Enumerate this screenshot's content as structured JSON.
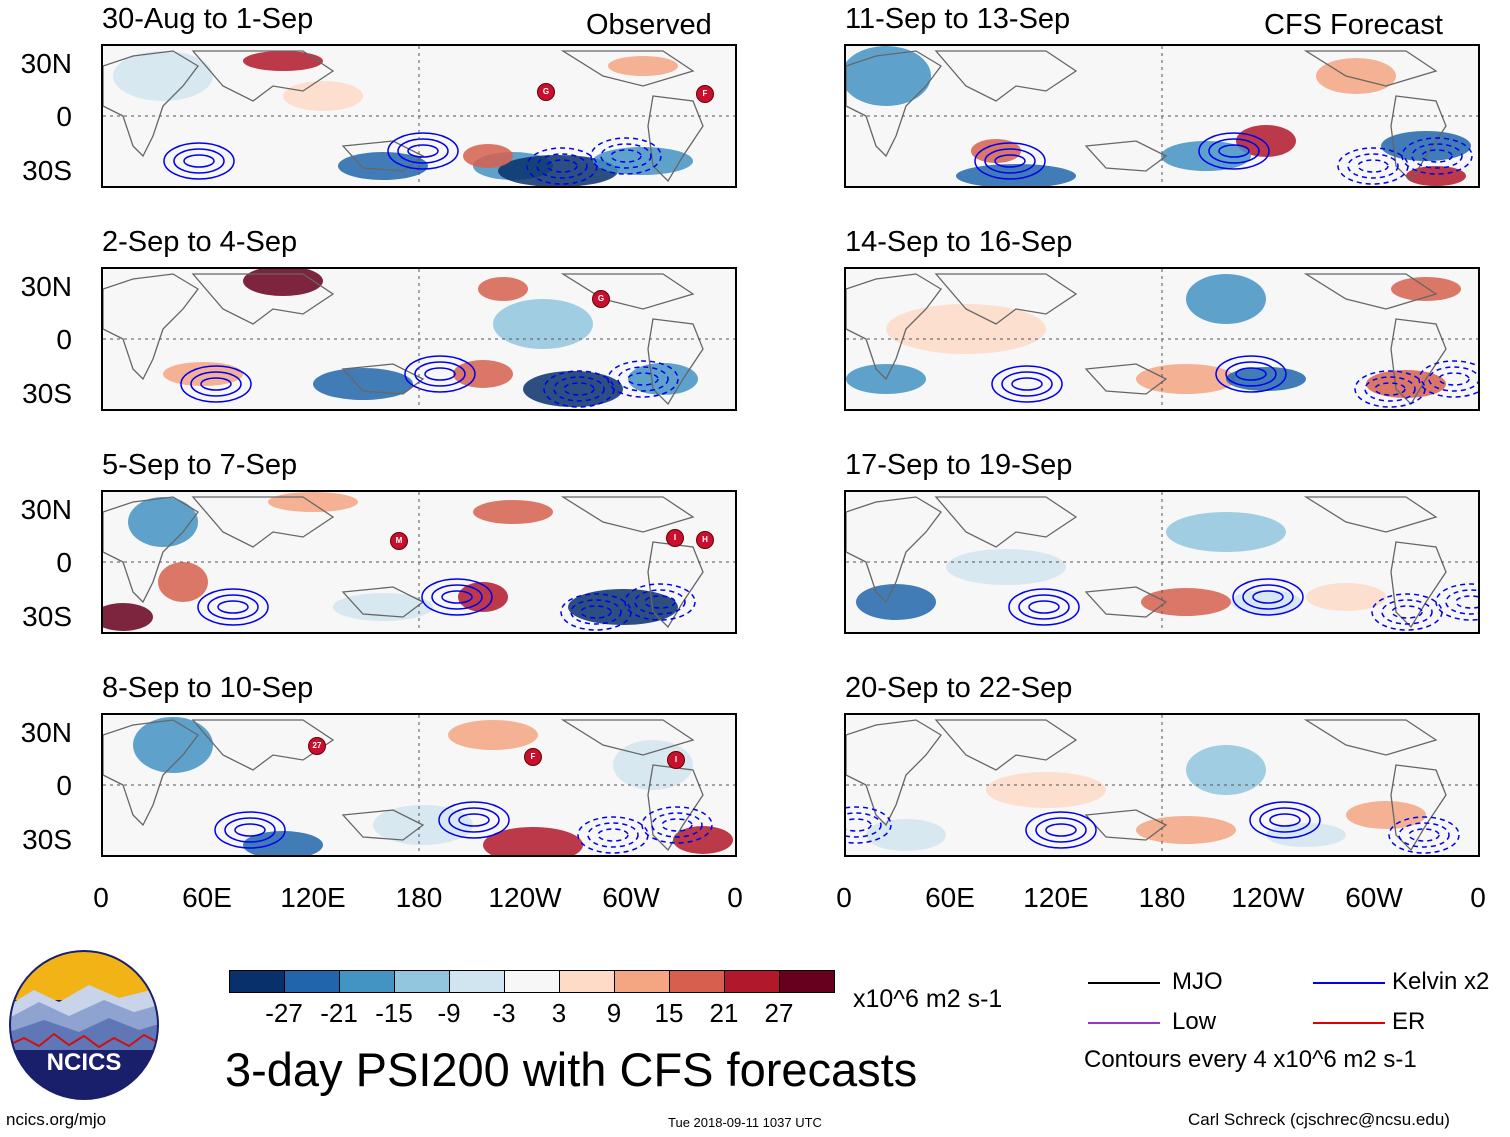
{
  "observed_label": "Observed",
  "forecast_label": "CFS Forecast",
  "panels_left": [
    {
      "title": "30-Aug to 1-Sep",
      "storms": [
        "G",
        "F"
      ]
    },
    {
      "title": "2-Sep to 4-Sep",
      "storms": [
        "G"
      ]
    },
    {
      "title": "5-Sep to 7-Sep",
      "storms": [
        "M",
        "I",
        "H"
      ]
    },
    {
      "title": "8-Sep to 10-Sep",
      "storms": [
        "27",
        "F",
        "I"
      ]
    }
  ],
  "panels_right": [
    {
      "title": "11-Sep to 13-Sep"
    },
    {
      "title": "14-Sep to 16-Sep"
    },
    {
      "title": "17-Sep to 19-Sep"
    },
    {
      "title": "20-Sep to 22-Sep"
    }
  ],
  "lat_labels": [
    "30N",
    "0",
    "30S"
  ],
  "lon_labels": [
    "0",
    "60E",
    "120E",
    "180",
    "120W",
    "60W",
    "0"
  ],
  "colorbar": {
    "colors": [
      "#08306b",
      "#2166ac",
      "#4393c3",
      "#92c5de",
      "#d1e5f0",
      "#f7f7f7",
      "#fddbc7",
      "#f4a582",
      "#d6604d",
      "#b2182b",
      "#67001f"
    ],
    "labels": [
      "-27",
      "-21",
      "-15",
      "-9",
      "-3",
      "3",
      "9",
      "15",
      "21",
      "27"
    ],
    "units": "x10^6 m2 s-1"
  },
  "legend": {
    "mjo": "MJO",
    "low": "Low",
    "kelvin": "Kelvin x2",
    "er": "ER",
    "mjo_color": "#000000",
    "low_color": "#9933cc",
    "kelvin_color": "#0000ee",
    "er_color": "#dd0000",
    "contour_note": "Contours every 4 x10^6 m2 s-1"
  },
  "logo_text": "NCICS",
  "main_title": "3-day PSI200 with CFS forecasts",
  "footer_left": "ncics.org/mjo",
  "footer_center": "Tue 2018-09-11 1037 UTC",
  "footer_right": "Carl Schreck (cjschrec@ncsu.edu)"
}
